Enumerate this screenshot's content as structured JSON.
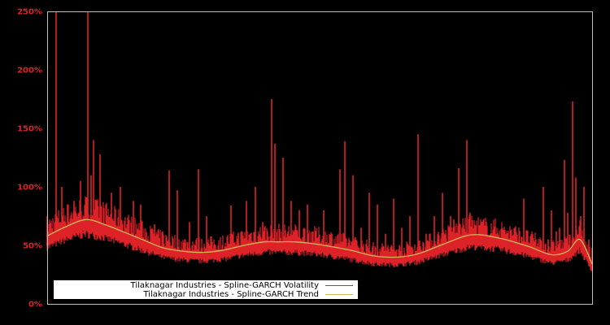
{
  "chart_data": {
    "type": "line",
    "title": "",
    "xlabel": "",
    "ylabel": "",
    "ylim": [
      0,
      250
    ],
    "yticks": [
      "0%",
      "50%",
      "100%",
      "150%",
      "200%",
      "250%"
    ],
    "ytick_values": [
      0,
      50,
      100,
      150,
      200,
      250
    ],
    "grid": false,
    "legend_position": "lower left",
    "background": "#000000",
    "axis_color": "#c0c0c0",
    "tick_label_color": "#dd2228",
    "series": [
      {
        "name": "Tilaknagar Industries - Spline-GARCH Volatility",
        "color": "#dd2228",
        "x": [
          0,
          7,
          11,
          14,
          18,
          20,
          25,
          28,
          33,
          37,
          41,
          44,
          47,
          50,
          54,
          57,
          62,
          65,
          69,
          73,
          79,
          85,
          90,
          95,
          100,
          106,
          110,
          115,
          120,
          124,
          128,
          132,
          137,
          142,
          146,
          150,
          155,
          160,
          166,
          170,
          175,
          181,
          186,
          190,
          196,
          200,
          205,
          210,
          215,
          220,
          226,
          231,
          235,
          240,
          245,
          250,
          256,
          260,
          265,
          270,
          276,
          280,
          285,
          290,
          296,
          300,
          306,
          310,
          315,
          320,
          326,
          330,
          335,
          340,
          346,
          350,
          356,
          360,
          366,
          370,
          376,
          380,
          386,
          390,
          396,
          400,
          406,
          410,
          416,
          420,
          426,
          430,
          436,
          440,
          446,
          450,
          456,
          460,
          466,
          470,
          476,
          480,
          486,
          490,
          496,
          500,
          506,
          510,
          516,
          520,
          526,
          530,
          536,
          540,
          546,
          550,
          556,
          560,
          566,
          570,
          576,
          580,
          586,
          590,
          596,
          600,
          606,
          610,
          616,
          620,
          626,
          630,
          636,
          640,
          646,
          650,
          656,
          660,
          666,
          670
        ],
        "values": [
          75,
          52,
          250,
          58,
          100,
          62,
          85,
          60,
          88,
          64,
          105,
          62,
          68,
          250,
          110,
          140,
          66,
          128,
          63,
          75,
          95,
          62,
          100,
          58,
          70,
          88,
          60,
          85,
          52,
          55,
          48,
          68,
          46,
          62,
          44,
          114,
          48,
          97,
          45,
          52,
          70,
          43,
          115,
          42,
          75,
          45,
          50,
          40,
          46,
          42,
          84,
          43,
          60,
          42,
          88,
          46,
          100,
          50,
          70,
          48,
          175,
          137,
          54,
          125,
          50,
          88,
          55,
          80,
          50,
          85,
          62,
          52,
          48,
          80,
          52,
          60,
          48,
          115,
          139,
          50,
          110,
          48,
          65,
          45,
          95,
          48,
          85,
          45,
          60,
          42,
          90,
          40,
          65,
          38,
          75,
          42,
          145,
          45,
          60,
          48,
          75,
          55,
          95,
          60,
          75,
          72,
          116,
          65,
          140,
          78,
          65,
          58,
          68,
          60,
          55,
          58,
          52,
          60,
          50,
          62,
          48,
          55,
          90,
          45,
          60,
          50,
          55,
          100,
          55,
          80,
          62,
          65,
          123,
          78,
          173,
          108,
          75,
          100,
          55,
          48
        ]
      },
      {
        "name": "Tilaknagar Industries - Spline-GARCH Trend",
        "color": "#d4b85a",
        "x": [
          0,
          20,
          47,
          70,
          92,
          117,
          142,
          167,
          192,
          217,
          242,
          267,
          282,
          305,
          332,
          372,
          402,
          432,
          457,
          487,
          522,
          557,
          592,
          620,
          640,
          655,
          670
        ],
        "values": [
          58,
          65,
          72,
          68,
          62,
          55,
          48,
          45,
          44,
          46,
          50,
          53,
          53,
          53,
          51,
          46,
          41,
          40,
          43,
          51,
          59,
          56,
          49,
          42,
          45,
          55,
          34
        ]
      }
    ]
  },
  "legend": {
    "items": [
      {
        "label": "Tilaknagar Industries - Spline-GARCH Volatility",
        "color": "#dd2228"
      },
      {
        "label": "Tilaknagar Industries - Spline-GARCH Trend",
        "color": "#d4b85a"
      }
    ]
  }
}
